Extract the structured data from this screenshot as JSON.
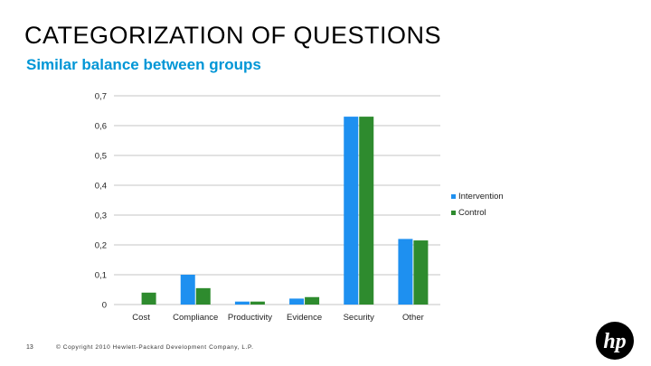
{
  "slide": {
    "title": "CATEGORIZATION OF QUESTIONS",
    "subtitle": "Similar balance between groups"
  },
  "footer": {
    "page_number": "13",
    "copyright": "© Copyright 2010 Hewlett-Packard Development Company, L.P."
  },
  "logo": {
    "text": "hp",
    "color": "#000000"
  },
  "chart_data": {
    "type": "bar",
    "categories": [
      "Cost",
      "Compliance",
      "Productivity",
      "Evidence",
      "Security",
      "Other"
    ],
    "series": [
      {
        "name": "Intervention",
        "color": "#1e90f0",
        "values": [
          0.0,
          0.1,
          0.01,
          0.02,
          0.63,
          0.22
        ]
      },
      {
        "name": "Control",
        "color": "#2e8b2e",
        "values": [
          0.04,
          0.055,
          0.01,
          0.025,
          0.63,
          0.215
        ]
      }
    ],
    "ylim": [
      0,
      0.7
    ],
    "yticks": [
      "0",
      "0,1",
      "0,2",
      "0,3",
      "0,4",
      "0,5",
      "0,6",
      "0,7"
    ],
    "xlabel": "",
    "ylabel": "",
    "grid": true,
    "legend_position": "right"
  }
}
